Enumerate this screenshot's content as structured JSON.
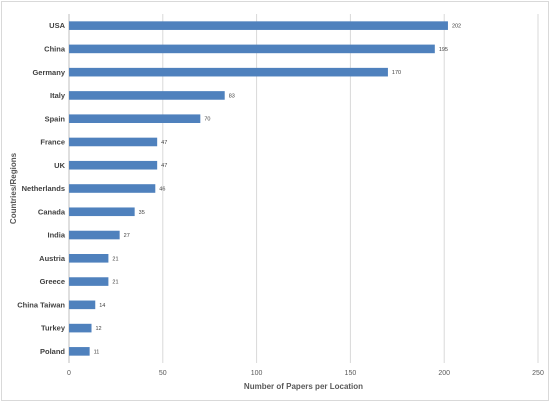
{
  "chart_data": {
    "type": "bar",
    "orientation": "horizontal",
    "categories": [
      "USA",
      "China",
      "Germany",
      "Italy",
      "Spain",
      "France",
      "UK",
      "Netherlands",
      "Canada",
      "India",
      "Austria",
      "Greece",
      "China Taiwan",
      "Turkey",
      "Poland"
    ],
    "values": [
      202,
      195,
      170,
      83,
      70,
      47,
      47,
      46,
      35,
      27,
      21,
      21,
      14,
      12,
      11
    ],
    "xlabel": "Number of Papers per Location",
    "ylabel": "Countries/Regions",
    "xlim": [
      0,
      250
    ],
    "xticks": [
      0,
      50,
      100,
      150,
      200,
      250
    ],
    "grid": "vertical",
    "bar_color": "#4f81bd",
    "legend": "none"
  }
}
